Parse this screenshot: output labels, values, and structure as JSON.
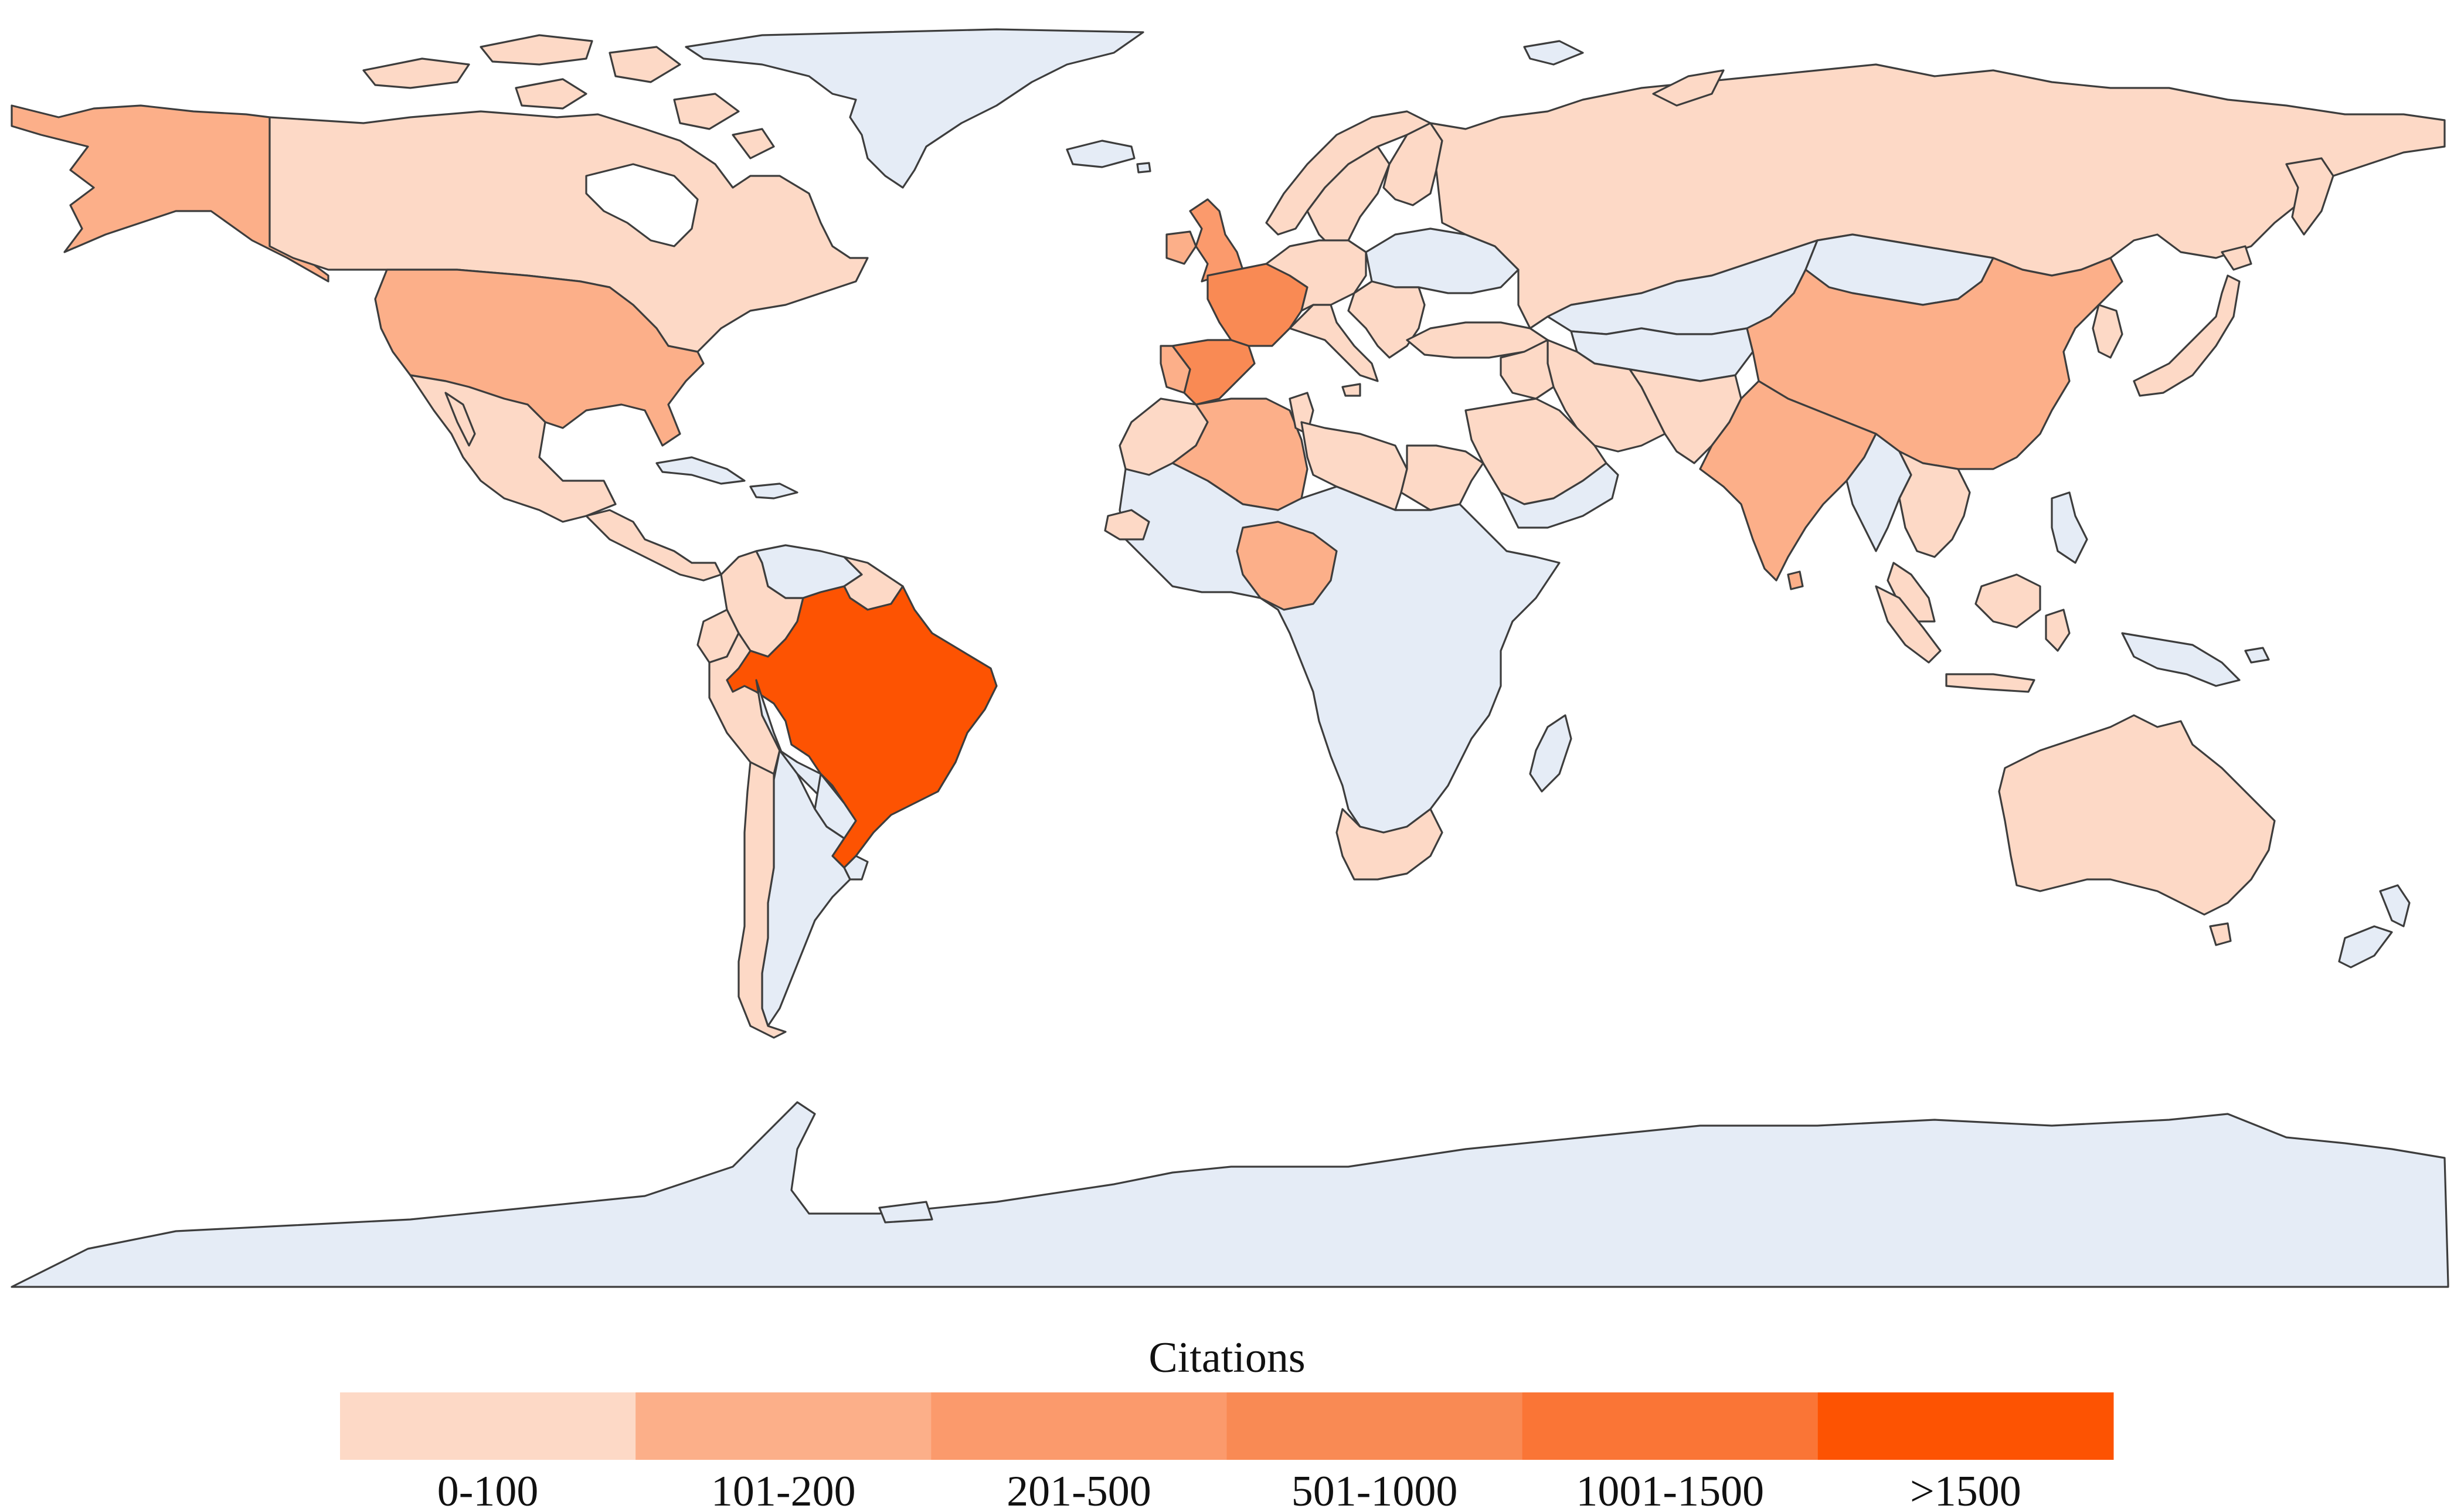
{
  "legend": {
    "title": "Citations",
    "bins": [
      {
        "label": "0-100",
        "color": "#fdd9c6"
      },
      {
        "label": "101-200",
        "color": "#fcaf89"
      },
      {
        "label": "201-500",
        "color": "#fb9a6c"
      },
      {
        "label": "501-1000",
        "color": "#f98a54"
      },
      {
        "label": "1001-1500",
        "color": "#fa7536"
      },
      {
        "label": ">1500",
        "color": "#fd5302"
      }
    ]
  },
  "colors": {
    "no_data": "#e5ecf6",
    "border": "#3d3d3d",
    "background": "#ffffff"
  },
  "regions": [
    {
      "name": "Canada",
      "bin": 0
    },
    {
      "name": "Alaska (USA)",
      "bin": 1
    },
    {
      "name": "USA",
      "bin": 1
    },
    {
      "name": "Mexico",
      "bin": 0
    },
    {
      "name": "Central America",
      "bin": 0
    },
    {
      "name": "Greenland",
      "bin": null
    },
    {
      "name": "Colombia",
      "bin": 0
    },
    {
      "name": "Venezuela",
      "bin": null
    },
    {
      "name": "Guianas",
      "bin": 0
    },
    {
      "name": "Ecuador",
      "bin": 0
    },
    {
      "name": "Peru",
      "bin": 0
    },
    {
      "name": "Brazil",
      "bin": 5
    },
    {
      "name": "Bolivia",
      "bin": null
    },
    {
      "name": "Chile",
      "bin": 0
    },
    {
      "name": "Argentina",
      "bin": null
    },
    {
      "name": "Paraguay",
      "bin": null
    },
    {
      "name": "Uruguay",
      "bin": null
    },
    {
      "name": "United Kingdom",
      "bin": 2
    },
    {
      "name": "Ireland",
      "bin": 1
    },
    {
      "name": "Iceland",
      "bin": null
    },
    {
      "name": "Norway",
      "bin": 0
    },
    {
      "name": "Sweden",
      "bin": 0
    },
    {
      "name": "Finland",
      "bin": 0
    },
    {
      "name": "France",
      "bin": 3
    },
    {
      "name": "Spain",
      "bin": 3
    },
    {
      "name": "Portugal",
      "bin": 1
    },
    {
      "name": "Central Europe",
      "bin": 0
    },
    {
      "name": "Italy",
      "bin": 0
    },
    {
      "name": "Eastern Europe",
      "bin": null
    },
    {
      "name": "Balkans",
      "bin": 0
    },
    {
      "name": "Turkey",
      "bin": 0
    },
    {
      "name": "Russia",
      "bin": 0
    },
    {
      "name": "Kazakhstan",
      "bin": null
    },
    {
      "name": "Mongolia",
      "bin": null
    },
    {
      "name": "Central Asia",
      "bin": null
    },
    {
      "name": "China",
      "bin": 1
    },
    {
      "name": "India",
      "bin": 1
    },
    {
      "name": "Iran",
      "bin": 0
    },
    {
      "name": "Pakistan / Afghanistan",
      "bin": 0
    },
    {
      "name": "Saudi Arabia",
      "bin": 0
    },
    {
      "name": "Yemen / Oman",
      "bin": null
    },
    {
      "name": "Iraq / Syria",
      "bin": 0
    },
    {
      "name": "Morocco",
      "bin": 0
    },
    {
      "name": "Algeria",
      "bin": 1
    },
    {
      "name": "Tunisia",
      "bin": 0
    },
    {
      "name": "Libya",
      "bin": 0
    },
    {
      "name": "Egypt",
      "bin": 0
    },
    {
      "name": "Sub-Saharan Africa",
      "bin": null
    },
    {
      "name": "Nigeria",
      "bin": 1
    },
    {
      "name": "Senegal",
      "bin": 0
    },
    {
      "name": "South Africa",
      "bin": 0
    },
    {
      "name": "Madagascar",
      "bin": null
    },
    {
      "name": "Southeast Asia mainland",
      "bin": 0
    },
    {
      "name": "Myanmar",
      "bin": null
    },
    {
      "name": "Malaysia",
      "bin": 0
    },
    {
      "name": "Indonesia",
      "bin": 0
    },
    {
      "name": "Philippines",
      "bin": null
    },
    {
      "name": "Japan",
      "bin": 0
    },
    {
      "name": "Korea",
      "bin": 0
    },
    {
      "name": "Papua New Guinea",
      "bin": null
    },
    {
      "name": "Australia",
      "bin": 0
    },
    {
      "name": "Tasmania (Australia)",
      "bin": 0
    },
    {
      "name": "New Zealand",
      "bin": null
    },
    {
      "name": "Antarctica",
      "bin": null
    },
    {
      "name": "Caribbean",
      "bin": null
    },
    {
      "name": "Arctic islands",
      "bin": 0
    },
    {
      "name": "Svalbard",
      "bin": null
    }
  ]
}
